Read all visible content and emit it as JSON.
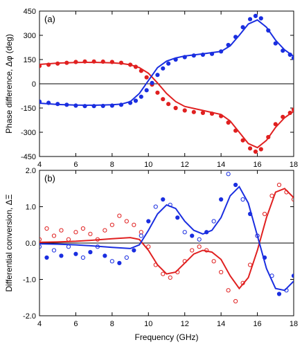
{
  "colors": {
    "red": "#e02020",
    "blue": "#1a2ee0",
    "axis": "#000000"
  },
  "chart_data": [
    {
      "panel_label": "(a)",
      "type": "scatter",
      "ylabel": "Phase difference, Δφ (deg)",
      "xlabel": "",
      "xlim": [
        4,
        18
      ],
      "ylim": [
        -450,
        450
      ],
      "xticks": [
        "4",
        "6",
        "8",
        "10",
        "12",
        "14",
        "16",
        "18"
      ],
      "yticks": [
        "-450",
        "-300",
        "-150",
        "0",
        "150",
        "300",
        "450"
      ],
      "ytick_values": [
        -450,
        -300,
        -150,
        0,
        150,
        300,
        450
      ],
      "zero_line": true,
      "series": [
        {
          "color": "red",
          "style": "points",
          "x": [
            4,
            4.5,
            5,
            5.5,
            6,
            6.5,
            7,
            7.5,
            8,
            8.5,
            9,
            9.3,
            9.6,
            9.9,
            10.2,
            10.5,
            10.8,
            11.1,
            11.5,
            12,
            12.5,
            13,
            13.5,
            14,
            14.4,
            14.8,
            15.2,
            15.6,
            15.9,
            16.2,
            16.6,
            17,
            17.4,
            17.8,
            18
          ],
          "y": [
            110,
            118,
            125,
            130,
            135,
            138,
            138,
            137,
            135,
            130,
            118,
            105,
            80,
            40,
            -5,
            -55,
            -95,
            -125,
            -150,
            -165,
            -175,
            -180,
            -185,
            -200,
            -240,
            -290,
            -350,
            -400,
            -420,
            -405,
            -330,
            -250,
            -205,
            -180,
            -160
          ]
        },
        {
          "color": "red",
          "style": "line",
          "x": [
            4,
            5,
            6,
            7,
            8,
            8.5,
            9,
            9.5,
            10,
            10.5,
            11,
            11.5,
            12,
            13,
            14,
            14.5,
            15,
            15.5,
            16,
            16.5,
            17,
            17.5,
            18
          ],
          "y": [
            120,
            128,
            132,
            133,
            130,
            126,
            118,
            100,
            65,
            5,
            -60,
            -110,
            -140,
            -165,
            -190,
            -230,
            -300,
            -370,
            -395,
            -350,
            -270,
            -210,
            -170
          ]
        },
        {
          "color": "blue",
          "style": "points",
          "x": [
            4,
            4.5,
            5,
            5.5,
            6,
            6.5,
            7,
            7.5,
            8,
            8.5,
            9,
            9.3,
            9.6,
            9.9,
            10.2,
            10.5,
            10.8,
            11.1,
            11.5,
            12,
            12.5,
            13,
            13.5,
            14,
            14.4,
            14.8,
            15.2,
            15.6,
            15.9,
            16.2,
            16.6,
            17,
            17.4,
            17.8,
            18
          ],
          "y": [
            -110,
            -118,
            -125,
            -130,
            -135,
            -138,
            -138,
            -137,
            -135,
            -130,
            -118,
            -105,
            -80,
            -40,
            5,
            55,
            95,
            125,
            150,
            165,
            175,
            180,
            185,
            200,
            240,
            290,
            350,
            400,
            420,
            405,
            330,
            250,
            205,
            180,
            160
          ]
        },
        {
          "color": "blue",
          "style": "line",
          "x": [
            4,
            5,
            6,
            7,
            8,
            8.5,
            9,
            9.5,
            10,
            10.5,
            11,
            11.5,
            12,
            13,
            14,
            14.5,
            15,
            15.5,
            16,
            16.5,
            17,
            17.5,
            18
          ],
          "y": [
            -120,
            -128,
            -132,
            -133,
            -130,
            -126,
            -110,
            -60,
            20,
            100,
            140,
            160,
            172,
            185,
            200,
            235,
            300,
            370,
            395,
            350,
            270,
            210,
            170
          ]
        }
      ]
    },
    {
      "panel_label": "(b)",
      "type": "scatter",
      "ylabel": "Differential conversion, ΔΞ",
      "xlabel": "Frequency (GHz)",
      "xlim": [
        4,
        18
      ],
      "ylim": [
        -2.0,
        2.0
      ],
      "xticks": [
        "4",
        "6",
        "8",
        "10",
        "12",
        "14",
        "16",
        "18"
      ],
      "yticks": [
        "-2.0",
        "-1.0",
        "0.0",
        "1.0",
        "2.0"
      ],
      "ytick_values": [
        -2,
        -1,
        0,
        1,
        2
      ],
      "zero_line": true,
      "series": [
        {
          "color": "red",
          "style": "points",
          "x": [
            4,
            4.4,
            4.8,
            5.2,
            5.6,
            6,
            6.4,
            6.8,
            7.2,
            7.6,
            8,
            8.4,
            8.8,
            9.2,
            9.6,
            10,
            10.4,
            10.8,
            11.2,
            11.6,
            12,
            12.4,
            12.8,
            13.2,
            13.6,
            14,
            14.4,
            14.8,
            15.2,
            15.6,
            16,
            16.4,
            16.8,
            17.2,
            17.6,
            18
          ],
          "y": [
            0.1,
            0.4,
            0.2,
            0.35,
            0.1,
            0.3,
            0.4,
            0.25,
            0.1,
            0.35,
            0.5,
            0.75,
            0.6,
            0.5,
            0.3,
            -0.1,
            -0.6,
            -0.85,
            -0.95,
            -0.8,
            -0.5,
            -0.2,
            -0.1,
            -0.2,
            -0.5,
            -0.8,
            -1.3,
            -1.6,
            -1.1,
            -0.6,
            0.2,
            0.8,
            1.3,
            1.6,
            1.4,
            1.2
          ]
        },
        {
          "color": "red",
          "style": "line",
          "x": [
            4,
            5,
            6,
            7,
            8,
            9,
            9.5,
            10,
            10.5,
            11,
            11.5,
            12,
            12.5,
            13,
            13.5,
            14,
            14.5,
            15,
            15.5,
            16,
            16.5,
            17,
            17.5,
            18
          ],
          "y": [
            0.02,
            0.03,
            0.05,
            0.08,
            0.12,
            0.15,
            0.1,
            -0.2,
            -0.6,
            -0.85,
            -0.8,
            -0.55,
            -0.3,
            -0.2,
            -0.25,
            -0.45,
            -0.9,
            -1.25,
            -0.95,
            -0.2,
            0.7,
            1.4,
            1.5,
            1.25
          ]
        },
        {
          "color": "blue",
          "style": "points",
          "x": [
            4,
            4.4,
            4.8,
            5.2,
            5.6,
            6,
            6.4,
            6.8,
            7.2,
            7.6,
            8,
            8.4,
            8.8,
            9.2,
            9.6,
            10,
            10.4,
            10.8,
            11.2,
            11.6,
            12,
            12.4,
            12.8,
            13.2,
            13.6,
            14,
            14.4,
            14.8,
            15.2,
            15.6,
            16,
            16.4,
            16.8,
            17.2,
            17.6,
            18
          ],
          "y": [
            -0.1,
            -0.4,
            -0.2,
            -0.35,
            -0.1,
            -0.3,
            -0.4,
            -0.25,
            -0.1,
            -0.35,
            -0.5,
            -0.55,
            -0.4,
            -0.2,
            0.2,
            0.6,
            1.0,
            1.2,
            1.05,
            0.7,
            0.3,
            0.2,
            0.1,
            0.3,
            0.6,
            1.2,
            1.9,
            1.6,
            1.2,
            0.8,
            0.2,
            -0.4,
            -0.9,
            -1.4,
            -1.3,
            -0.9
          ]
        },
        {
          "color": "blue",
          "style": "line",
          "x": [
            4,
            5,
            6,
            7,
            8,
            9,
            9.5,
            10,
            10.5,
            11,
            11.5,
            12,
            12.5,
            13,
            13.5,
            14,
            14.5,
            15,
            15.5,
            16,
            16.5,
            17,
            17.5,
            18
          ],
          "y": [
            -0.02,
            -0.03,
            -0.05,
            -0.08,
            -0.12,
            -0.15,
            -0.05,
            0.35,
            0.8,
            1.05,
            0.95,
            0.6,
            0.35,
            0.25,
            0.35,
            0.7,
            1.3,
            1.55,
            1.1,
            0.2,
            -0.7,
            -1.25,
            -1.3,
            -1.05
          ]
        }
      ]
    }
  ]
}
